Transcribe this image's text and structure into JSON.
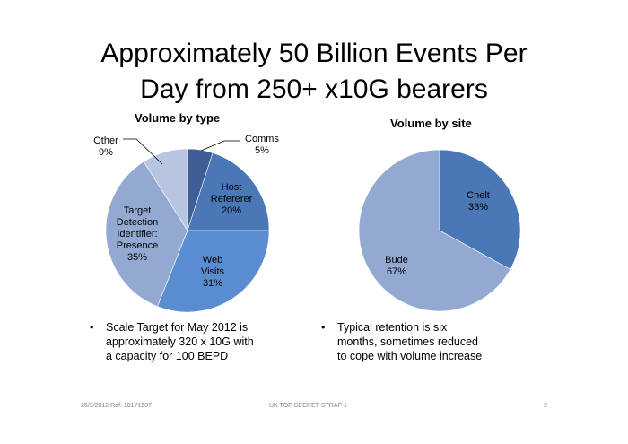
{
  "slide": {
    "title_line1": "Approximately 50 Billion Events Per",
    "title_line2": "Day from 250+ x10G bearers",
    "bullets": [
      [
        "Scale Target for May 2012 is",
        "approximately 320 x 10G with",
        "a capacity for 100 BEPD"
      ],
      [
        "Typical retention is six",
        "months, sometimes reduced",
        "to cope with volume increase"
      ]
    ],
    "footer": {
      "date_ref": "26/3/2012   Ref: 18171507",
      "classification": "UK TOP SECRET STRAP 1",
      "page": "2"
    }
  },
  "chart_data": [
    {
      "type": "pie",
      "title": "Volume by type",
      "slices": [
        {
          "label": "Comms",
          "value": 5,
          "color": "#3f5f94"
        },
        {
          "label": "Host Refererer",
          "value": 20,
          "color": "#4a77b5"
        },
        {
          "label": "Web Visits",
          "value": 31,
          "color": "#5a8dd0"
        },
        {
          "label": "Target Detection Identifier: Presence",
          "value": 35,
          "color": "#93a9d2"
        },
        {
          "label": "Other",
          "value": 9,
          "color": "#b7c5e0"
        }
      ],
      "data_labels": {
        "comms": [
          "Comms",
          "5%"
        ],
        "host": [
          "Host",
          "Refererer",
          "20%"
        ],
        "web": [
          "Web",
          "Visits",
          "31%"
        ],
        "target": [
          "Target",
          "Detection",
          "Identifier:",
          "Presence",
          "35%"
        ],
        "other": [
          "Other",
          "9%"
        ]
      }
    },
    {
      "type": "pie",
      "title": "Volume by site",
      "slices": [
        {
          "label": "Chelt",
          "value": 33,
          "color": "#4a77b5"
        },
        {
          "label": "Bude",
          "value": 67,
          "color": "#93a9d2"
        }
      ],
      "data_labels": {
        "chelt": [
          "Chelt",
          "33%"
        ],
        "bude": [
          "Bude",
          "67%"
        ]
      }
    }
  ]
}
